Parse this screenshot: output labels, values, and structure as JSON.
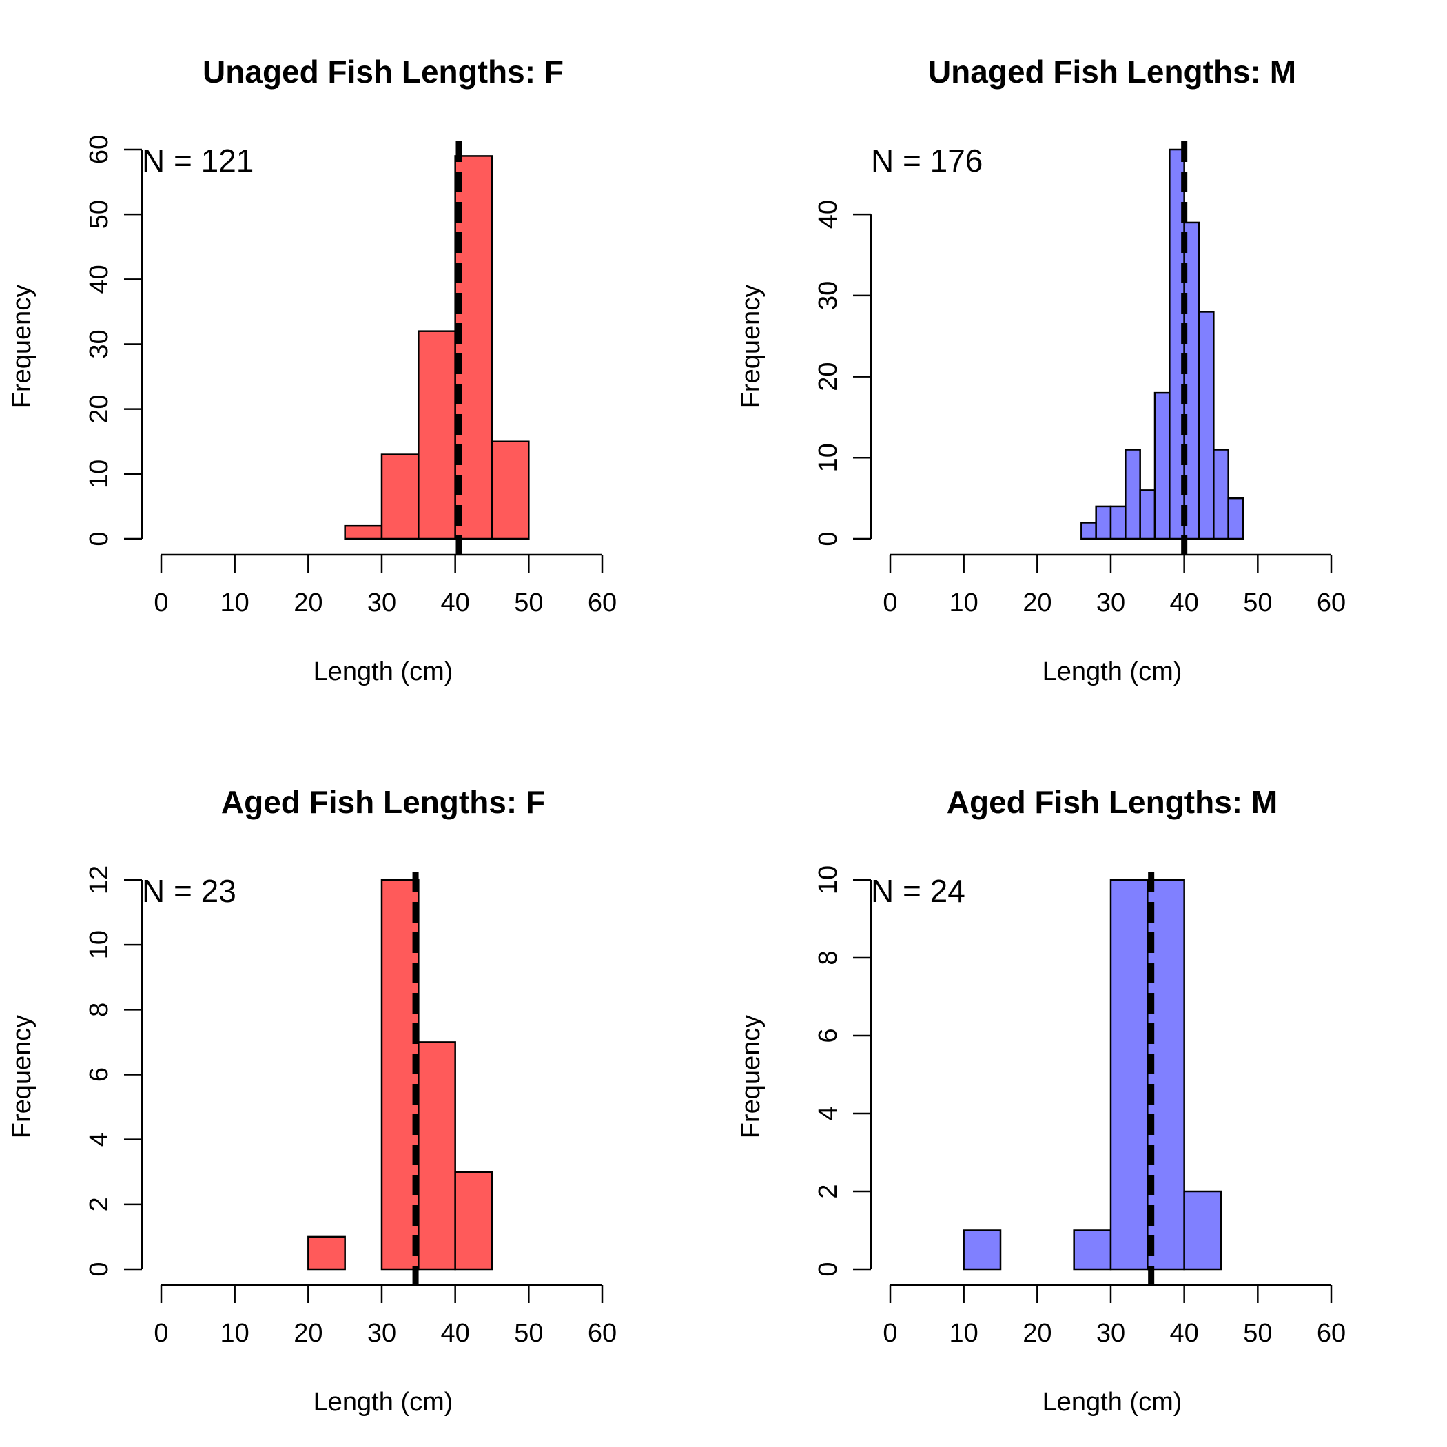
{
  "chart_data": [
    {
      "type": "histogram",
      "title": "Unaged Fish Lengths: F",
      "xlabel": "Length (cm)",
      "ylabel": "Frequency",
      "color": "#FF5A5A",
      "n_label": "N = 121",
      "xlim": [
        0,
        60
      ],
      "xticks": [
        0,
        10,
        20,
        30,
        40,
        50,
        60
      ],
      "ylim": [
        0,
        60
      ],
      "yticks": [
        0,
        10,
        20,
        30,
        40,
        50,
        60
      ],
      "mean": 40.5,
      "bins": [
        {
          "x0": 25,
          "x1": 30,
          "count": 2
        },
        {
          "x0": 30,
          "x1": 35,
          "count": 13
        },
        {
          "x0": 35,
          "x1": 40,
          "count": 32
        },
        {
          "x0": 40,
          "x1": 45,
          "count": 59
        },
        {
          "x0": 45,
          "x1": 50,
          "count": 15
        }
      ]
    },
    {
      "type": "histogram",
      "title": "Unaged Fish Lengths: M",
      "xlabel": "Length (cm)",
      "ylabel": "Frequency",
      "color": "#8080FF",
      "n_label": "N = 176",
      "xlim": [
        0,
        60
      ],
      "xticks": [
        0,
        10,
        20,
        30,
        40,
        50,
        60
      ],
      "ylim": [
        0,
        48
      ],
      "yticks": [
        0,
        10,
        20,
        30,
        40
      ],
      "mean": 40,
      "bins": [
        {
          "x0": 26,
          "x1": 28,
          "count": 2
        },
        {
          "x0": 28,
          "x1": 30,
          "count": 4
        },
        {
          "x0": 30,
          "x1": 32,
          "count": 4
        },
        {
          "x0": 32,
          "x1": 34,
          "count": 11
        },
        {
          "x0": 34,
          "x1": 36,
          "count": 6
        },
        {
          "x0": 36,
          "x1": 38,
          "count": 18
        },
        {
          "x0": 38,
          "x1": 40,
          "count": 48
        },
        {
          "x0": 40,
          "x1": 42,
          "count": 39
        },
        {
          "x0": 42,
          "x1": 44,
          "count": 28
        },
        {
          "x0": 44,
          "x1": 46,
          "count": 11
        },
        {
          "x0": 46,
          "x1": 48,
          "count": 5
        }
      ]
    },
    {
      "type": "histogram",
      "title": "Aged Fish Lengths: F",
      "xlabel": "Length (cm)",
      "ylabel": "Frequency",
      "color": "#FF5A5A",
      "n_label": "N = 23",
      "xlim": [
        0,
        60
      ],
      "xticks": [
        0,
        10,
        20,
        30,
        40,
        50,
        60
      ],
      "ylim": [
        0,
        12
      ],
      "yticks": [
        0,
        2,
        4,
        6,
        8,
        10,
        12
      ],
      "mean": 34.6,
      "bins": [
        {
          "x0": 20,
          "x1": 25,
          "count": 1
        },
        {
          "x0": 25,
          "x1": 30,
          "count": 0
        },
        {
          "x0": 30,
          "x1": 35,
          "count": 12
        },
        {
          "x0": 35,
          "x1": 40,
          "count": 7
        },
        {
          "x0": 40,
          "x1": 45,
          "count": 3
        }
      ]
    },
    {
      "type": "histogram",
      "title": "Aged Fish Lengths: M",
      "xlabel": "Length (cm)",
      "ylabel": "Frequency",
      "color": "#8080FF",
      "n_label": "N = 24",
      "xlim": [
        0,
        60
      ],
      "xticks": [
        0,
        10,
        20,
        30,
        40,
        50,
        60
      ],
      "ylim": [
        0,
        10
      ],
      "yticks": [
        0,
        2,
        4,
        6,
        8,
        10
      ],
      "mean": 35.5,
      "bins": [
        {
          "x0": 10,
          "x1": 15,
          "count": 1
        },
        {
          "x0": 15,
          "x1": 20,
          "count": 0
        },
        {
          "x0": 20,
          "x1": 25,
          "count": 0
        },
        {
          "x0": 25,
          "x1": 30,
          "count": 1
        },
        {
          "x0": 30,
          "x1": 35,
          "count": 10
        },
        {
          "x0": 35,
          "x1": 40,
          "count": 10
        },
        {
          "x0": 40,
          "x1": 45,
          "count": 2
        }
      ]
    }
  ]
}
